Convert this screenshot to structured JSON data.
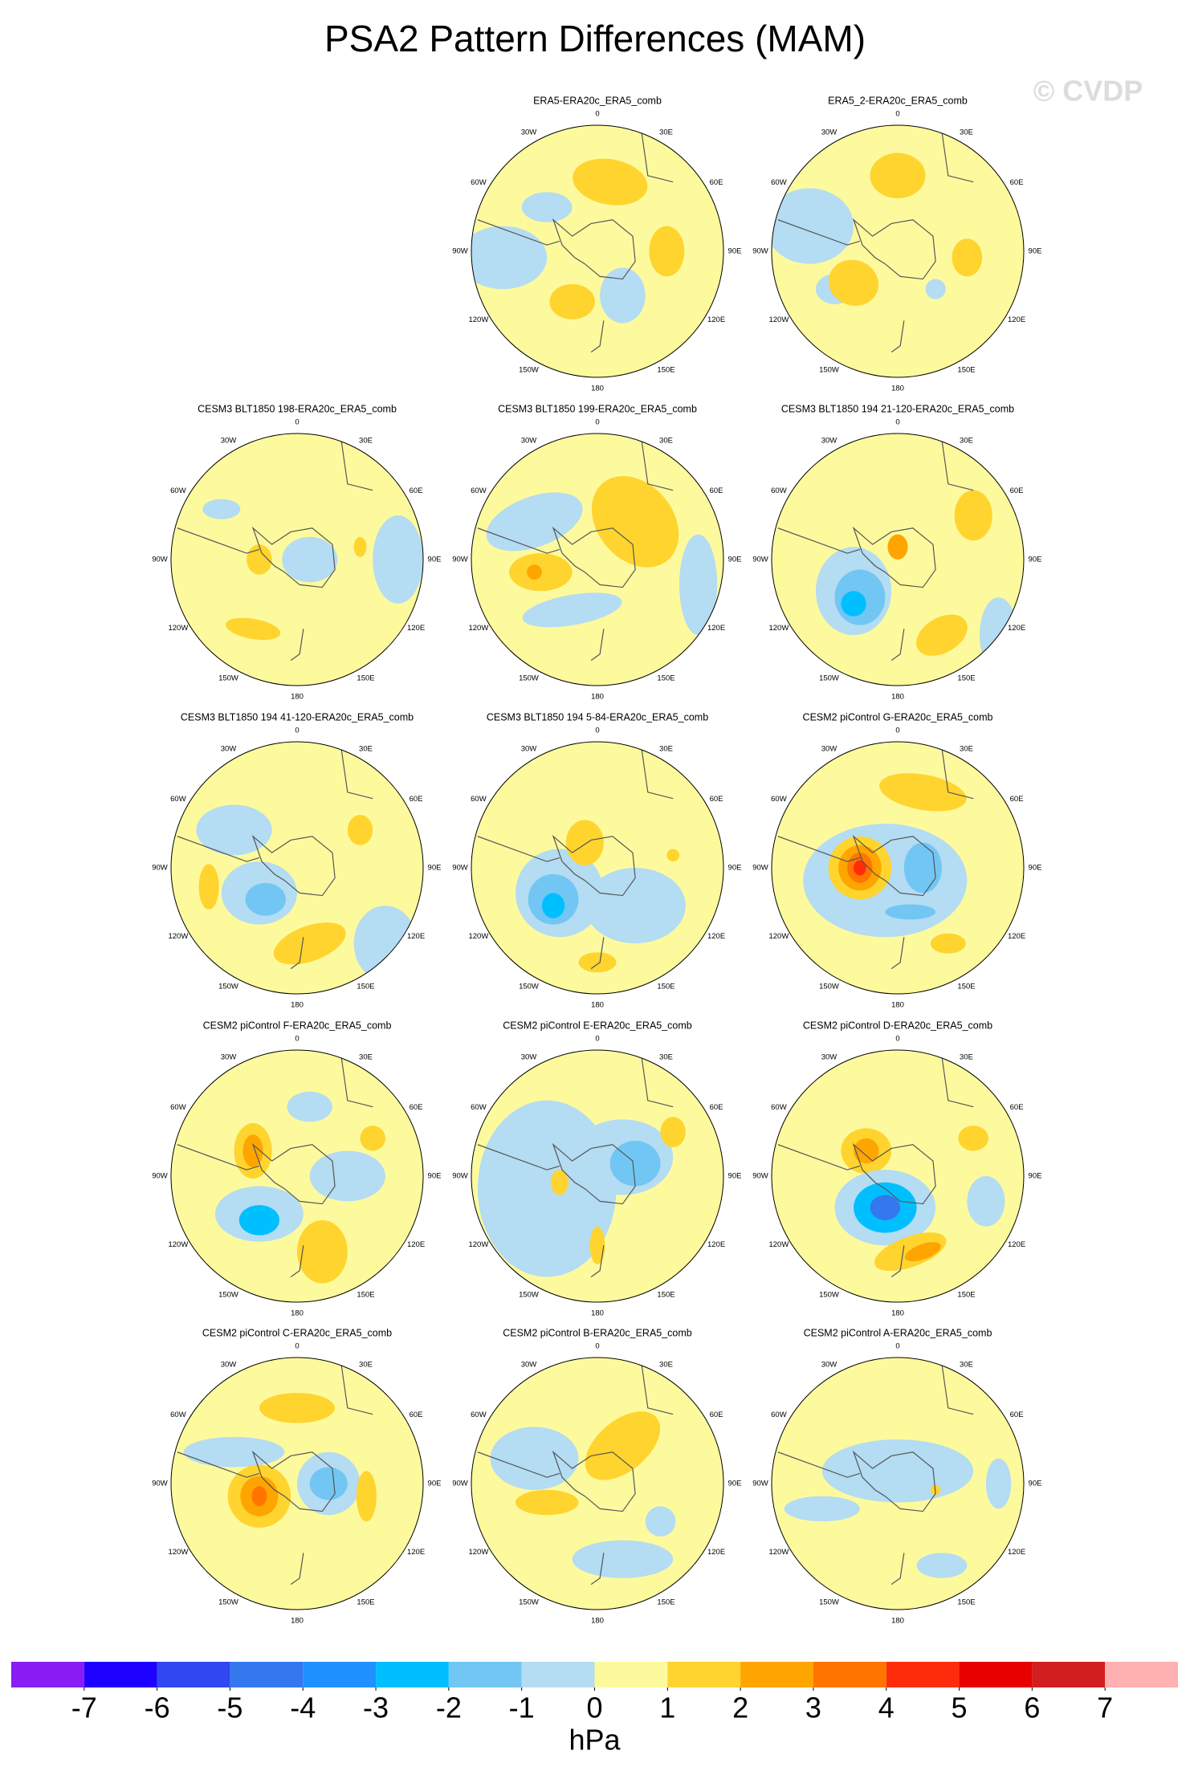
{
  "title": "PSA2 Pattern Differences (MAM)",
  "watermark": "© CVDP",
  "panels": [
    {
      "title": "ERA5-ERA20c_ERA5_comb"
    },
    {
      "title": "ERA5_2-ERA20c_ERA5_comb"
    },
    {
      "title": "CESM3 BLT1850 198-ERA20c_ERA5_comb"
    },
    {
      "title": "CESM3 BLT1850 199-ERA20c_ERA5_comb"
    },
    {
      "title": "CESM3 BLT1850 194 21-120-ERA20c_ERA5_comb"
    },
    {
      "title": "CESM3 BLT1850 194 41-120-ERA20c_ERA5_comb"
    },
    {
      "title": "CESM3 BLT1850 194 5-84-ERA20c_ERA5_comb"
    },
    {
      "title": "CESM2 piControl G-ERA20c_ERA5_comb"
    },
    {
      "title": "CESM2 piControl F-ERA20c_ERA5_comb"
    },
    {
      "title": "CESM2 piControl E-ERA20c_ERA5_comb"
    },
    {
      "title": "CESM2 piControl D-ERA20c_ERA5_comb"
    },
    {
      "title": "CESM2 piControl C-ERA20c_ERA5_comb"
    },
    {
      "title": "CESM2 piControl B-ERA20c_ERA5_comb"
    },
    {
      "title": "CESM2 piControl A-ERA20c_ERA5_comb"
    }
  ],
  "longitude_labels": [
    "0",
    "30E",
    "60E",
    "90E",
    "120E",
    "150E",
    "180",
    "150W",
    "120W",
    "90W",
    "60W",
    "30W"
  ],
  "colorbar": {
    "levels": [
      -7,
      -6,
      -5,
      -4,
      -3,
      -2,
      -1,
      0,
      1,
      2,
      3,
      4,
      5,
      6,
      7
    ],
    "colors": [
      "#8a1cf6",
      "#1e00ff",
      "#2f48ef",
      "#3478ee",
      "#1e90ff",
      "#00bfff",
      "#72c6f3",
      "#b4dcf3",
      "#fdfa9e",
      "#ffd42e",
      "#ffa500",
      "#ff7500",
      "#ff2c0c",
      "#e80000",
      "#d21e1e",
      "#ffb0b0"
    ],
    "label": "hPa"
  }
}
